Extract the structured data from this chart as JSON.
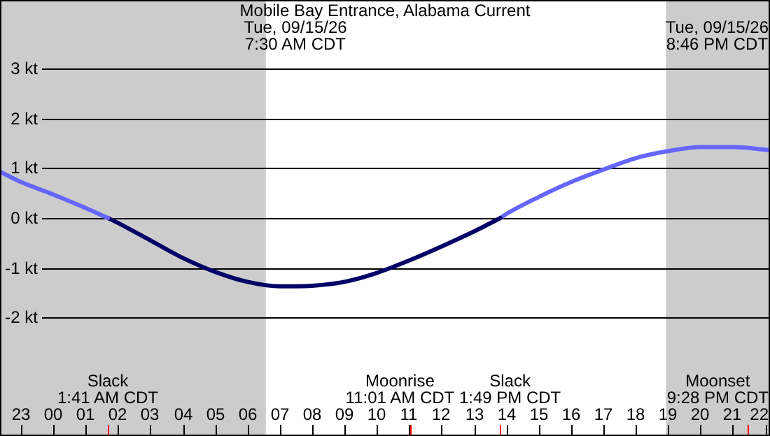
{
  "chart_data": {
    "type": "line",
    "title": "Mobile Bay Entrance, Alabama Current",
    "xlim": [
      "--09-14T22:21",
      "--09-15T22:09"
    ],
    "ylim": [
      -4.37,
      4.37
    ],
    "xticks": [
      {
        "value": "--09-14T23:00",
        "label": "23"
      },
      {
        "value": "--09-15T00:00",
        "label": "00"
      },
      {
        "value": "--09-15T01:00",
        "label": "01"
      },
      {
        "value": "--09-15T02:00",
        "label": "02"
      },
      {
        "value": "--09-15T03:00",
        "label": "03"
      },
      {
        "value": "--09-15T04:00",
        "label": "04"
      },
      {
        "value": "--09-15T05:00",
        "label": "05"
      },
      {
        "value": "--09-15T06:00",
        "label": "06"
      },
      {
        "value": "--09-15T07:00",
        "label": "07"
      },
      {
        "value": "--09-15T08:00",
        "label": "08"
      },
      {
        "value": "--09-15T09:00",
        "label": "09"
      },
      {
        "value": "--09-15T10:00",
        "label": "10"
      },
      {
        "value": "--09-15T11:00",
        "label": "11"
      },
      {
        "value": "--09-15T12:00",
        "label": "12"
      },
      {
        "value": "--09-15T13:00",
        "label": "13"
      },
      {
        "value": "--09-15T14:00",
        "label": "14"
      },
      {
        "value": "--09-15T15:00",
        "label": "15"
      },
      {
        "value": "--09-15T16:00",
        "label": "16"
      },
      {
        "value": "--09-15T17:00",
        "label": "17"
      },
      {
        "value": "--09-15T18:00",
        "label": "18"
      },
      {
        "value": "--09-15T19:00",
        "label": "19"
      },
      {
        "value": "--09-15T20:00",
        "label": "20"
      },
      {
        "value": "--09-15T21:00",
        "label": "21"
      },
      {
        "value": "--09-15T22:00",
        "label": "22"
      }
    ],
    "yticks": [
      {
        "value": -2,
        "label": "-2 kt"
      },
      {
        "value": -1,
        "label": "-1 kt"
      },
      {
        "value": 0,
        "label": "0 kt"
      },
      {
        "value": 1,
        "label": "1 kt"
      },
      {
        "value": 2,
        "label": "2 kt"
      },
      {
        "value": 3,
        "label": "3 kt"
      }
    ],
    "grid": "y",
    "marker": "none",
    "line_style": "solid",
    "series": [
      {
        "color": "#6666ff",
        "x": [
          "--09-14T22:21",
          "--09-14T23:00",
          "--09-15T00:00",
          "--09-15T01:00",
          "--09-15T01:41"
        ],
        "values": [
          0.93,
          0.72,
          0.47,
          0.2,
          0
        ]
      },
      {
        "color": "#000066",
        "x": [
          "--09-15T01:41",
          "--09-15T02:00",
          "--09-15T03:00",
          "--09-15T04:00",
          "--09-15T05:00",
          "--09-15T06:00",
          "--09-15T07:00",
          "--09-15T07:33",
          "--09-15T08:00",
          "--09-15T09:00",
          "--09-15T10:00",
          "--09-15T11:00",
          "--09-15T12:00",
          "--09-15T13:00",
          "--09-15T13:49"
        ],
        "values": [
          0,
          -0.1,
          -0.45,
          -0.8,
          -1.08,
          -1.28,
          -1.37,
          -1.37,
          -1.36,
          -1.28,
          -1.1,
          -0.85,
          -0.57,
          -0.27,
          0
        ]
      },
      {
        "color": "#6666ff",
        "x": [
          "--09-15T13:49",
          "--09-15T14:00",
          "--09-15T15:00",
          "--09-15T16:00",
          "--09-15T17:00",
          "--09-15T18:00",
          "--09-15T19:00",
          "--09-15T20:00",
          "--09-15T21:00",
          "--09-15T22:00",
          "--09-15T22:09"
        ],
        "values": [
          0,
          0.08,
          0.42,
          0.72,
          0.97,
          1.2,
          1.34,
          1.42,
          1.42,
          1.37,
          1.36
        ]
      }
    ],
    "bands": [
      {
        "axis": "x",
        "from": "--09-14T22:21",
        "to": "--09-15T06:34",
        "color": "#cccccc"
      },
      {
        "axis": "x",
        "from": "--09-15T18:56",
        "to": "--09-15T22:09",
        "color": "#cccccc"
      }
    ],
    "annotations": [
      "Tue, 09/15/26\n7:30 AM CDT",
      "Tue, 09/15/26\n8:46 PM CDT",
      "Slack\n1:41 AM CDT",
      "Moonrise\n11:01 AM CDT",
      "Slack\n1:49 PM CDT",
      "Moonset\n9:28 PM CDT"
    ]
  }
}
